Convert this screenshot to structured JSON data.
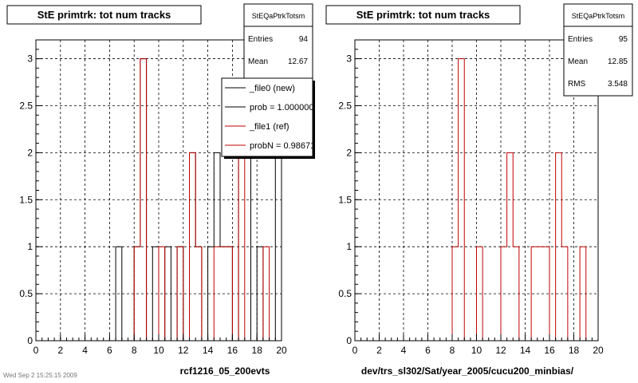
{
  "colors": {
    "new": "#000000",
    "ref": "#c00000",
    "grid": "#000000",
    "frame": "#000000",
    "bg": "#ffffff"
  },
  "footer": "Wed Sep 2 15:25:15 2009",
  "chart_data": [
    {
      "type": "histogram",
      "title": "StE primtrk: tot num tracks",
      "xlabel": "rcf1216_05_200evts",
      "xlim": [
        0,
        20
      ],
      "ylim": [
        0,
        3.2
      ],
      "grid": true,
      "x_ticks": [
        "0",
        "2",
        "4",
        "6",
        "8",
        "10",
        "12",
        "14",
        "16",
        "18",
        "20"
      ],
      "y_ticks": [
        "0",
        "0.5",
        "1",
        "1.5",
        "2",
        "2.5",
        "3"
      ],
      "bin_width": 0.5,
      "stats": {
        "name": "StEQaPtrkTotsm",
        "rows": [
          {
            "label": "Entries",
            "value": "94"
          },
          {
            "label": "Mean",
            "value": "12.67"
          }
        ]
      },
      "legend": {
        "entries": [
          {
            "label": "_file0 (new)",
            "series": "new"
          },
          {
            "label": "prob = 1.000000",
            "series": "new"
          },
          {
            "label": "_file1 (ref)",
            "series": "ref"
          },
          {
            "label": "probN = 0.98671",
            "series": "ref"
          }
        ]
      },
      "series": [
        {
          "id": "new",
          "bins": [
            {
              "x": 6.75,
              "y": 1
            },
            {
              "x": 8.25,
              "y": 1
            },
            {
              "x": 8.75,
              "y": 3
            },
            {
              "x": 9.75,
              "y": 1
            },
            {
              "x": 10.75,
              "y": 1
            },
            {
              "x": 11.75,
              "y": 1
            },
            {
              "x": 12.75,
              "y": 2
            },
            {
              "x": 13.25,
              "y": 1
            },
            {
              "x": 14.25,
              "y": 1
            },
            {
              "x": 14.75,
              "y": 2
            },
            {
              "x": 15.25,
              "y": 1
            },
            {
              "x": 15.75,
              "y": 1
            },
            {
              "x": 16.75,
              "y": 2
            },
            {
              "x": 17.25,
              "y": 2
            },
            {
              "x": 18.25,
              "y": 1
            },
            {
              "x": 19.75,
              "y": 3
            }
          ]
        },
        {
          "id": "ref",
          "bins": [
            {
              "x": 8.25,
              "y": 1
            },
            {
              "x": 8.75,
              "y": 3
            },
            {
              "x": 10.25,
              "y": 1
            },
            {
              "x": 11.75,
              "y": 1
            },
            {
              "x": 12.75,
              "y": 2
            },
            {
              "x": 13.25,
              "y": 1
            },
            {
              "x": 14.75,
              "y": 1
            },
            {
              "x": 15.25,
              "y": 1
            },
            {
              "x": 15.75,
              "y": 1
            },
            {
              "x": 16.75,
              "y": 2
            },
            {
              "x": 18.75,
              "y": 1
            }
          ]
        }
      ]
    },
    {
      "type": "histogram",
      "title": "StE primtrk: tot num tracks",
      "xlabel": "dev/trs_sl302/Sat/year_2005/cucu200_minbias/",
      "xlim": [
        0,
        20
      ],
      "ylim": [
        0,
        3.2
      ],
      "grid": true,
      "x_ticks": [
        "0",
        "2",
        "4",
        "6",
        "8",
        "10",
        "12",
        "14",
        "16",
        "18",
        "20"
      ],
      "y_ticks": [
        "0",
        "0.5",
        "1",
        "1.5",
        "2",
        "2.5",
        "3"
      ],
      "bin_width": 0.5,
      "stats": {
        "name": "StEQaPtrkTotsm",
        "rows": [
          {
            "label": "Entries",
            "value": "95"
          },
          {
            "label": "Mean",
            "value": "12.85"
          },
          {
            "label": "RMS",
            "value": "3.548"
          }
        ]
      },
      "series": [
        {
          "id": "ref",
          "bins": [
            {
              "x": 8.25,
              "y": 1
            },
            {
              "x": 8.75,
              "y": 3
            },
            {
              "x": 10.25,
              "y": 1
            },
            {
              "x": 12.25,
              "y": 1
            },
            {
              "x": 12.75,
              "y": 2
            },
            {
              "x": 13.25,
              "y": 1
            },
            {
              "x": 14.75,
              "y": 1
            },
            {
              "x": 15.25,
              "y": 1
            },
            {
              "x": 15.75,
              "y": 1
            },
            {
              "x": 16.75,
              "y": 2
            },
            {
              "x": 17.25,
              "y": 1
            },
            {
              "x": 18.75,
              "y": 1
            }
          ]
        }
      ]
    }
  ]
}
